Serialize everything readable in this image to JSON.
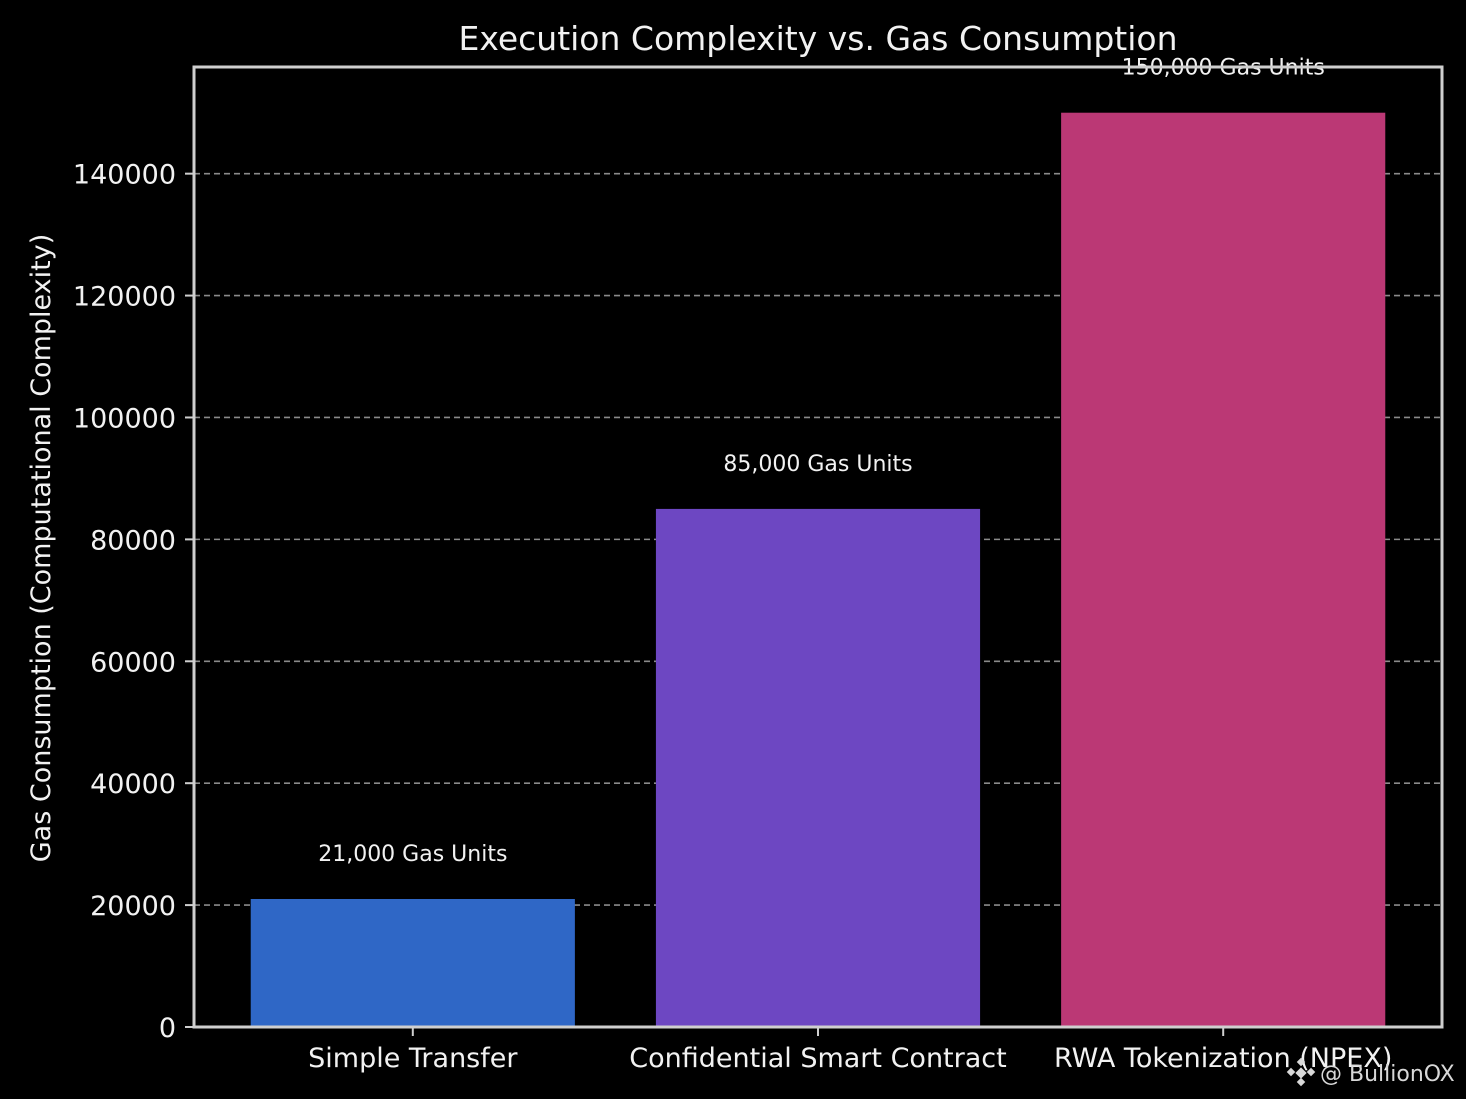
{
  "chart_data": {
    "type": "bar",
    "title": "Execution Complexity vs. Gas Consumption",
    "xlabel": "",
    "ylabel": "Gas Consumption (Computational Complexity)",
    "categories": [
      "Simple Transfer",
      "Confidential Smart Contract",
      "RWA Tokenization (NPEX)"
    ],
    "values": [
      21000,
      85000,
      150000
    ],
    "data_labels": [
      "21,000 Gas Units",
      "85,000 Gas Units",
      "150,000 Gas Units"
    ],
    "colors": [
      "#2f67c6",
      "#6d47c2",
      "#bb3875"
    ],
    "ylim": [
      0,
      157500
    ],
    "yticks": [
      0,
      20000,
      40000,
      60000,
      80000,
      100000,
      120000,
      140000
    ],
    "ytick_labels": [
      "0",
      "20000",
      "40000",
      "60000",
      "80000",
      "100000",
      "120000",
      "140000"
    ],
    "grid": "y-dashed",
    "legend": "none",
    "background": "#000000",
    "text_color": "#f2f2f2",
    "grid_color": "#8a8a8a",
    "axes_color": "#cfcfcf"
  },
  "watermark": {
    "icon": "binance-diamond-icon",
    "text": "@ BullionOX"
  }
}
